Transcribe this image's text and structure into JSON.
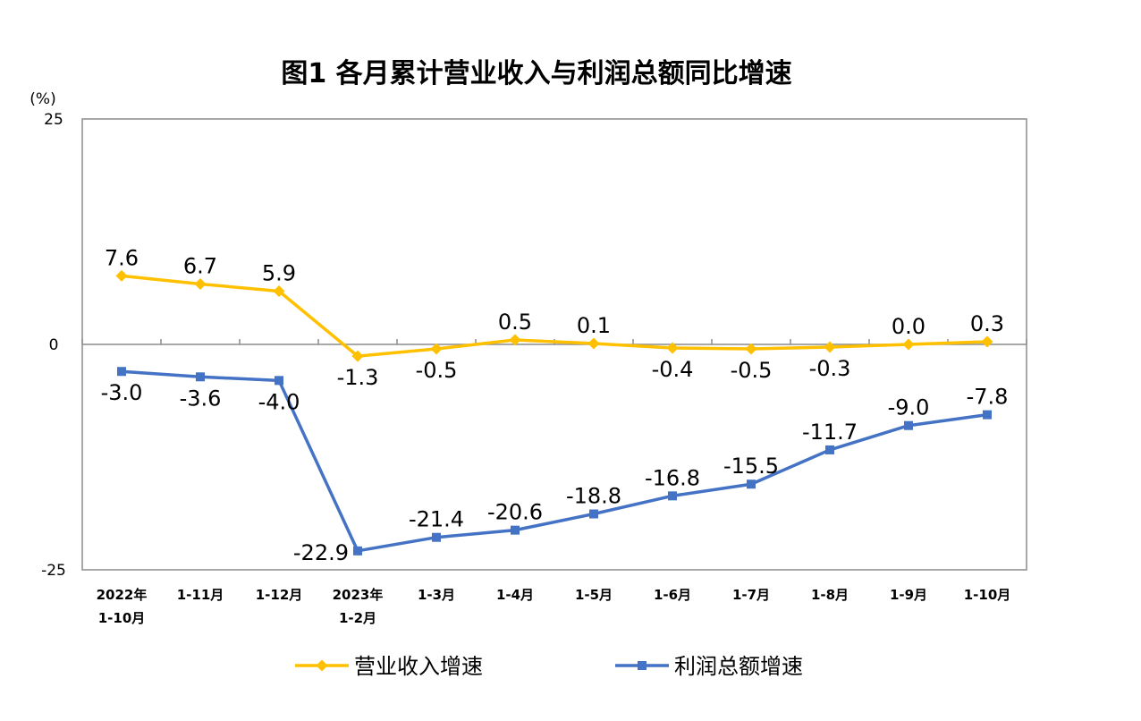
{
  "chart_data": {
    "type": "line",
    "title": "图1 各月累计营业收入与利润总额同比增速",
    "ylabel": "(%)",
    "ylim": [
      -25,
      25
    ],
    "yticks": [
      25,
      0,
      -25
    ],
    "categories": [
      [
        "2022年",
        "1-10月"
      ],
      [
        "1-11月"
      ],
      [
        "1-12月"
      ],
      [
        "2023年",
        "1-2月"
      ],
      [
        "1-3月"
      ],
      [
        "1-4月"
      ],
      [
        "1-5月"
      ],
      [
        "1-6月"
      ],
      [
        "1-7月"
      ],
      [
        "1-8月"
      ],
      [
        "1-9月"
      ],
      [
        "1-10月"
      ]
    ],
    "series": [
      {
        "name": "营业收入增速",
        "color": "#FFC000",
        "marker": "diamond",
        "values": [
          7.6,
          6.7,
          5.9,
          -1.3,
          -0.5,
          0.5,
          0.1,
          -0.4,
          -0.5,
          -0.3,
          0.0,
          0.3
        ],
        "labels": [
          "7.6",
          "6.7",
          "5.9",
          "-1.3",
          "-0.5",
          "0.5",
          "0.1",
          "-0.4",
          "-0.5",
          "-0.3",
          "0.0",
          "0.3"
        ],
        "label_side": [
          "above",
          "above",
          "above",
          "below",
          "below",
          "above",
          "above",
          "below",
          "below",
          "below",
          "above",
          "above"
        ]
      },
      {
        "name": "利润总额增速",
        "color": "#4472C4",
        "marker": "square",
        "values": [
          -3.0,
          -3.6,
          -4.0,
          -22.9,
          -21.4,
          -20.6,
          -18.8,
          -16.8,
          -15.5,
          -11.7,
          -9.0,
          -7.8
        ],
        "labels": [
          "-3.0",
          "-3.6",
          "-4.0",
          "-22.9",
          "-21.4",
          "-20.6",
          "-18.8",
          "-16.8",
          "-15.5",
          "-11.7",
          "-9.0",
          "-7.8"
        ],
        "label_side": [
          "below",
          "below",
          "below",
          "left",
          "above",
          "above",
          "above",
          "above",
          "above",
          "above",
          "above",
          "above"
        ]
      }
    ],
    "grid": false,
    "legend_position": "bottom"
  }
}
